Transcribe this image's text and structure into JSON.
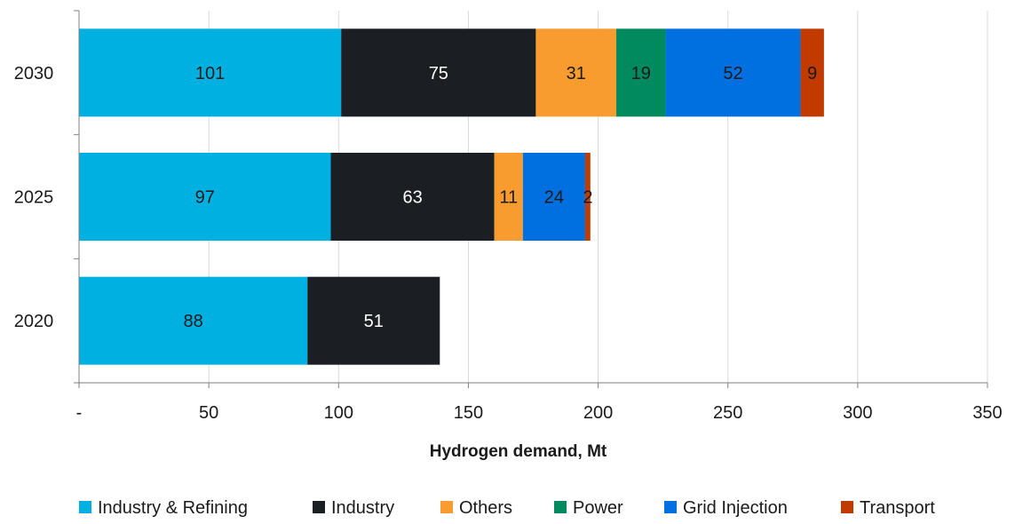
{
  "chart_data": {
    "type": "bar",
    "orientation": "horizontal",
    "stacked": true,
    "categories": [
      "2030",
      "2025",
      "2020"
    ],
    "series": [
      {
        "name": "Industry & Refining",
        "color": "#00b0e0",
        "label_color": "#1a1a1a",
        "values": [
          101,
          97,
          88
        ]
      },
      {
        "name": "Industry",
        "color": "#1b1f24",
        "label_color": "#ffffff",
        "values": [
          75,
          63,
          51
        ]
      },
      {
        "name": "Others",
        "color": "#f89c30",
        "label_color": "#1a1a1a",
        "values": [
          31,
          11,
          0
        ]
      },
      {
        "name": "Power",
        "color": "#008a5e",
        "label_color": "#1a1a1a",
        "values": [
          19,
          0,
          0
        ]
      },
      {
        "name": "Grid Injection",
        "color": "#0070e0",
        "label_color": "#1a1a1a",
        "values": [
          52,
          24,
          0
        ]
      },
      {
        "name": "Transport",
        "color": "#c13a00",
        "label_color": "#1a1a1a",
        "values": [
          9,
          2,
          0
        ]
      }
    ],
    "xlabel": "Hydrogen demand, Mt",
    "ylabel": "",
    "xlim": [
      0,
      350
    ],
    "x_ticks": [
      0,
      50,
      100,
      150,
      200,
      250,
      300,
      350
    ],
    "x_tick_labels": [
      "-",
      "50",
      "100",
      "150",
      "200",
      "250",
      "300",
      "350"
    ],
    "grid": "vertical",
    "legend_position": "bottom"
  }
}
